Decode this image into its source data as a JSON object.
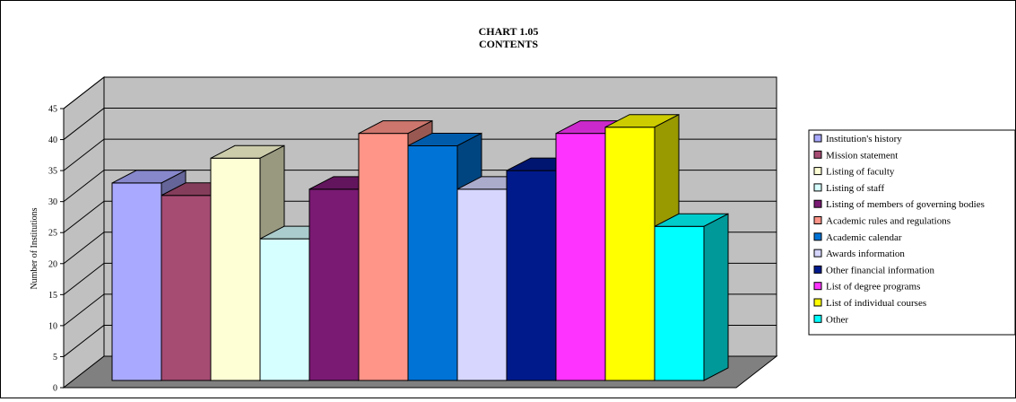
{
  "chart_data": {
    "type": "bar",
    "title": "CHART 1.05",
    "subtitle": "CONTENTS",
    "xlabel": "",
    "ylabel": "Number of Institutions",
    "ylim": [
      0,
      45
    ],
    "yticks": [
      0,
      5,
      10,
      15,
      20,
      25,
      30,
      35,
      40,
      45
    ],
    "grid": true,
    "legend_position": "right",
    "series": [
      {
        "name": "Institution's history",
        "value": 33,
        "color": "#a9a9ff"
      },
      {
        "name": "Mission statement",
        "value": 31,
        "color": "#a64c73"
      },
      {
        "name": "Listing of faculty",
        "value": 37,
        "color": "#ffffd6"
      },
      {
        "name": "Listing of staff",
        "value": 24,
        "color": "#d6ffff"
      },
      {
        "name": "Listing of members of governing bodies",
        "value": 32,
        "color": "#7a1a73"
      },
      {
        "name": "Academic rules and regulations",
        "value": 41,
        "color": "#ff9488"
      },
      {
        "name": "Academic calendar",
        "value": 39,
        "color": "#0073d6"
      },
      {
        "name": "Awards information",
        "value": 32,
        "color": "#d6d6ff"
      },
      {
        "name": "Other financial information",
        "value": 35,
        "color": "#001a8c"
      },
      {
        "name": "List of degree programs",
        "value": 41,
        "color": "#ff33ff"
      },
      {
        "name": "List of individual courses",
        "value": 42,
        "color": "#ffff00"
      },
      {
        "name": "Other",
        "value": 26,
        "color": "#00ffff"
      }
    ]
  }
}
